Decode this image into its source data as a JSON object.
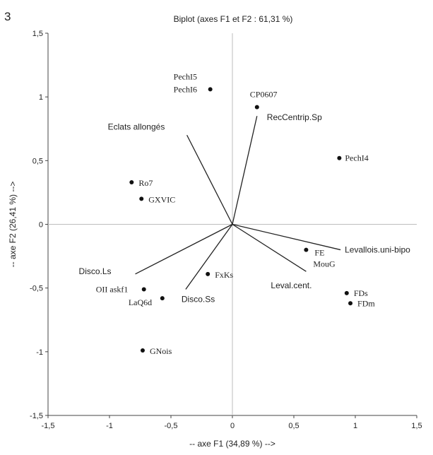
{
  "figure_number": "3",
  "chart_data": {
    "type": "scatter",
    "title": "Biplot (axes F1 et F2 : 61,31 %)",
    "xlabel": "-- axe F1 (34,89 %) -->",
    "ylabel": "-- axe F2 (26,41 %) -->",
    "xlim": [
      -1.5,
      1.5
    ],
    "ylim": [
      -1.5,
      1.5
    ],
    "xticks": [
      "-1,5",
      "-1",
      "-0,5",
      "0",
      "0,5",
      "1",
      "1,5"
    ],
    "yticks": [
      "-1,5",
      "-1",
      "-0,5",
      "0",
      "0,5",
      "1",
      "1,5"
    ],
    "grid": false,
    "observations": [
      {
        "name": "PechI5",
        "x": -0.18,
        "y": 1.06
      },
      {
        "name": "PechI6",
        "x": -0.18,
        "y": 1.06
      },
      {
        "name": "CP0607",
        "x": 0.2,
        "y": 0.92
      },
      {
        "name": "PechI4",
        "x": 0.87,
        "y": 0.52
      },
      {
        "name": "Ro7",
        "x": -0.82,
        "y": 0.33
      },
      {
        "name": "GXVIC",
        "x": -0.74,
        "y": 0.2
      },
      {
        "name": "FE",
        "x": 0.6,
        "y": -0.2
      },
      {
        "name": "MouG",
        "x": 0.6,
        "y": -0.2
      },
      {
        "name": "FxKs",
        "x": -0.2,
        "y": -0.39
      },
      {
        "name": "OII askf1",
        "x": -0.72,
        "y": -0.51
      },
      {
        "name": "LaQ6d",
        "x": -0.57,
        "y": -0.58
      },
      {
        "name": "FDs",
        "x": 0.93,
        "y": -0.54
      },
      {
        "name": "FDm",
        "x": 0.96,
        "y": -0.62
      },
      {
        "name": "GNois",
        "x": -0.73,
        "y": -0.99
      }
    ],
    "variables": [
      {
        "name": "Eclats allongés",
        "x": -0.37,
        "y": 0.7
      },
      {
        "name": "RecCentrip.Sp",
        "x": 0.2,
        "y": 0.85
      },
      {
        "name": "Levallois.uni-bipo",
        "x": 0.88,
        "y": -0.2
      },
      {
        "name": "Leval.cent.",
        "x": 0.6,
        "y": -0.37
      },
      {
        "name": "Disco.Ls",
        "x": -0.79,
        "y": -0.39
      },
      {
        "name": "Disco.Ss",
        "x": -0.38,
        "y": -0.51
      }
    ]
  }
}
